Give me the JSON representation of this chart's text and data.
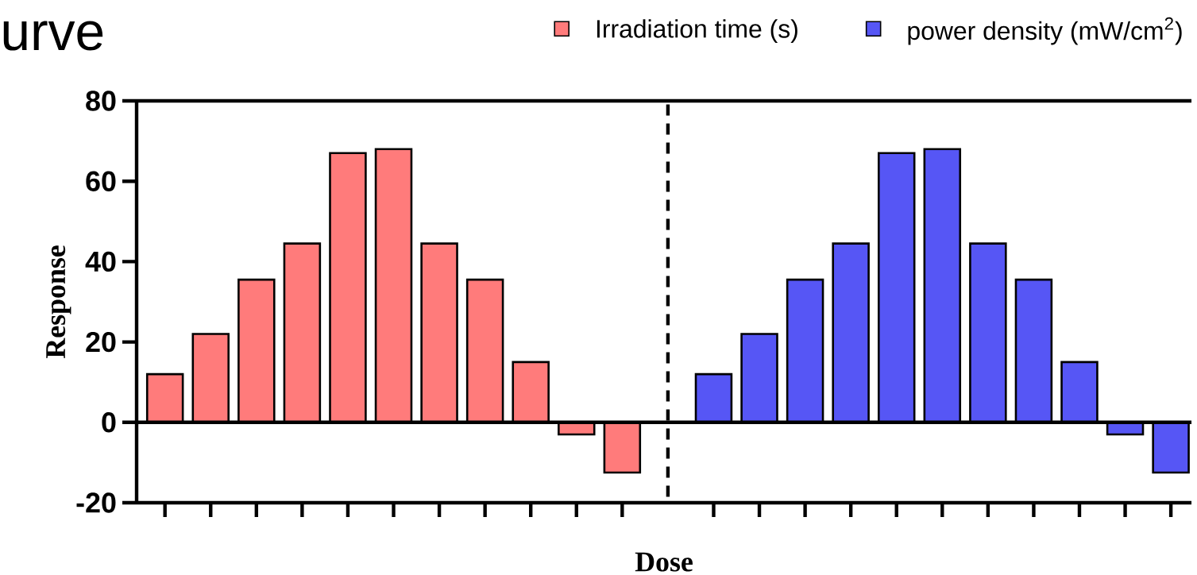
{
  "chart_data": {
    "type": "bar",
    "title": "urve",
    "xlabel": "Dose",
    "ylabel": "Response",
    "categories": [
      null,
      null,
      null,
      null,
      null,
      null,
      null,
      null,
      null,
      null,
      null,
      null,
      null,
      null,
      null,
      null,
      null,
      null,
      null,
      null,
      null,
      null,
      null
    ],
    "series": [
      {
        "name": "Irradiation time (s)",
        "color": "#ff7b7b",
        "values": [
          12,
          22,
          35.5,
          44.5,
          67,
          68,
          44.5,
          35.5,
          15,
          -3,
          -12.5,
          null,
          null,
          null,
          null,
          null,
          null,
          null,
          null,
          null,
          null,
          null,
          null
        ]
      },
      {
        "name": "power density (mW/cm$^{2}$)",
        "color": "#5656f5",
        "values": [
          null,
          null,
          null,
          null,
          null,
          null,
          null,
          null,
          null,
          null,
          null,
          null,
          12,
          22,
          35.5,
          44.5,
          67,
          68,
          44.5,
          35.5,
          15,
          -3,
          -12.5
        ]
      }
    ],
    "ylim": [
      -20,
      80
    ],
    "yticks": [
      -20,
      0,
      20,
      40,
      60,
      80
    ],
    "legend": "top",
    "tick_labels": "y"
  }
}
